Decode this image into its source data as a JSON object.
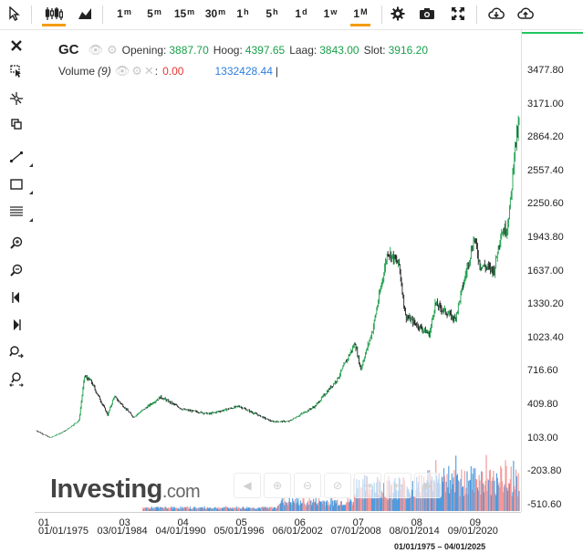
{
  "toolbar": {
    "timeframes": [
      {
        "main": "1",
        "sup": "m"
      },
      {
        "main": "5",
        "sup": "m"
      },
      {
        "main": "15",
        "sup": "m"
      },
      {
        "main": "30",
        "sup": "m"
      },
      {
        "main": "1",
        "sup": "h"
      },
      {
        "main": "5",
        "sup": "h"
      },
      {
        "main": "1",
        "sup": "d"
      },
      {
        "main": "1",
        "sup": "w"
      },
      {
        "main": "1",
        "sup": "M"
      }
    ],
    "active_timeframe": 8
  },
  "legend": {
    "symbol": "GC",
    "opening_label": "Opening:",
    "opening_value": "3887.70",
    "high_label": "Hoog:",
    "high_value": "4397.65",
    "low_label": "Laag:",
    "low_value": "3843.00",
    "close_label": "Slot:",
    "close_value": "3916.20",
    "volume_label": "Volume",
    "volume_param": "(9)",
    "volume_colon": ":",
    "volume_value1": "0.00",
    "volume_value2": "1332428.44",
    "volume_cursor": "|"
  },
  "watermark": {
    "brand": "Investing",
    "suffix": ".com"
  },
  "y_axis": {
    "ticks": [
      "3477.80",
      "3171.00",
      "2864.20",
      "2557.40",
      "2250.60",
      "1943.80",
      "1637.00",
      "1330.20",
      "1023.40",
      "716.60",
      "409.80",
      "103.00",
      "-203.80",
      "-510.60"
    ]
  },
  "x_axis": {
    "ticks": [
      {
        "top": "01",
        "bottom": "01/01/1975"
      },
      {
        "top": "03",
        "bottom": "03/01/1984"
      },
      {
        "top": "04",
        "bottom": "04/01/1990"
      },
      {
        "top": "05",
        "bottom": "05/01/1996"
      },
      {
        "top": "06",
        "bottom": "06/01/2002"
      },
      {
        "top": "07",
        "bottom": "07/01/2008"
      },
      {
        "top": "08",
        "bottom": "08/01/2014"
      },
      {
        "top": "09",
        "bottom": "09/01/2020"
      }
    ],
    "range": "01/01/1975 – 04/01/2025"
  },
  "colors": {
    "up": "#1a9e4a",
    "down": "#e53935",
    "accent": "#f39c12",
    "volume_up": "#3b8fd9",
    "volume_down": "#f28b8b"
  },
  "chart_data": {
    "type": "line",
    "title": "",
    "series": [
      {
        "name": "GC",
        "x": [
          "1975-01",
          "1976-06",
          "1978-01",
          "1979-06",
          "1980-01",
          "1980-09",
          "1982-06",
          "1983-02",
          "1984-03",
          "1985-02",
          "1987-12",
          "1990-04",
          "1993-01",
          "1996-02",
          "1999-07",
          "2001-04",
          "2002-06",
          "2004-01",
          "2006-05",
          "2008-03",
          "2008-10",
          "2010-01",
          "2011-08",
          "2012-10",
          "2013-06",
          "2015-12",
          "2016-07",
          "2018-08",
          "2020-08",
          "2021-03",
          "2022-09",
          "2023-05",
          "2024-01",
          "2024-06",
          "2024-10",
          "2025-04"
        ],
        "y": [
          175,
          110,
          175,
          270,
          675,
          630,
          320,
          490,
          390,
          300,
          485,
          370,
          330,
          400,
          260,
          260,
          320,
          400,
          650,
          980,
          740,
          1100,
          1825,
          1700,
          1230,
          1060,
          1340,
          1200,
          1950,
          1700,
          1650,
          1990,
          2040,
          2330,
          2740,
          3000
        ]
      }
    ],
    "volume": {
      "name": "Volume (9)",
      "y_range": [
        -510.6,
        -203.8
      ]
    },
    "ylim": [
      -600,
      3600
    ],
    "xlabel": "",
    "ylabel": "",
    "grid": false
  }
}
